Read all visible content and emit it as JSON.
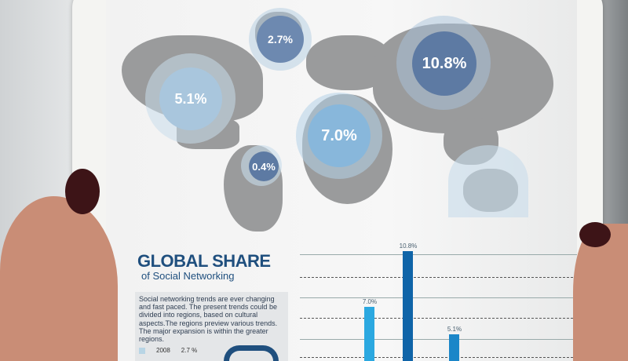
{
  "infographic": {
    "title": "GLOBAL SHARE",
    "subtitle": "of Social Networking",
    "description": "Social networking trends are ever changing and fast paced. The present trends could be divided into regions, based on cultural aspects.The regions preview various trends. The major expansion is within the greater regions.",
    "legend": [
      {
        "year": "2008",
        "value": "2.7 %",
        "color": "#b8d5e5"
      }
    ],
    "map_bubbles": [
      {
        "region": "Greenland",
        "label": "2.7%"
      },
      {
        "region": "Russia",
        "label": "10.8%"
      },
      {
        "region": "North America",
        "label": "5.1%"
      },
      {
        "region": "Africa",
        "label": "7.0%"
      },
      {
        "region": "South America",
        "label": "0.4%"
      },
      {
        "region": "Australia",
        "label": ""
      }
    ],
    "colors": {
      "title": "#1f4f7e",
      "map": "#9a9b9c",
      "bubble_dark": "#5d7aa3",
      "bubble_light": "#a9c6dd"
    }
  },
  "chart_data": {
    "type": "bar",
    "categories": [
      "",
      "",
      ""
    ],
    "values": [
      7.0,
      10.8,
      5.1
    ],
    "labels": [
      "7.0%",
      "10.8%",
      "5.1%"
    ],
    "colors": [
      "#2ba8e0",
      "#0f64a8",
      "#1b86c8"
    ]
  }
}
